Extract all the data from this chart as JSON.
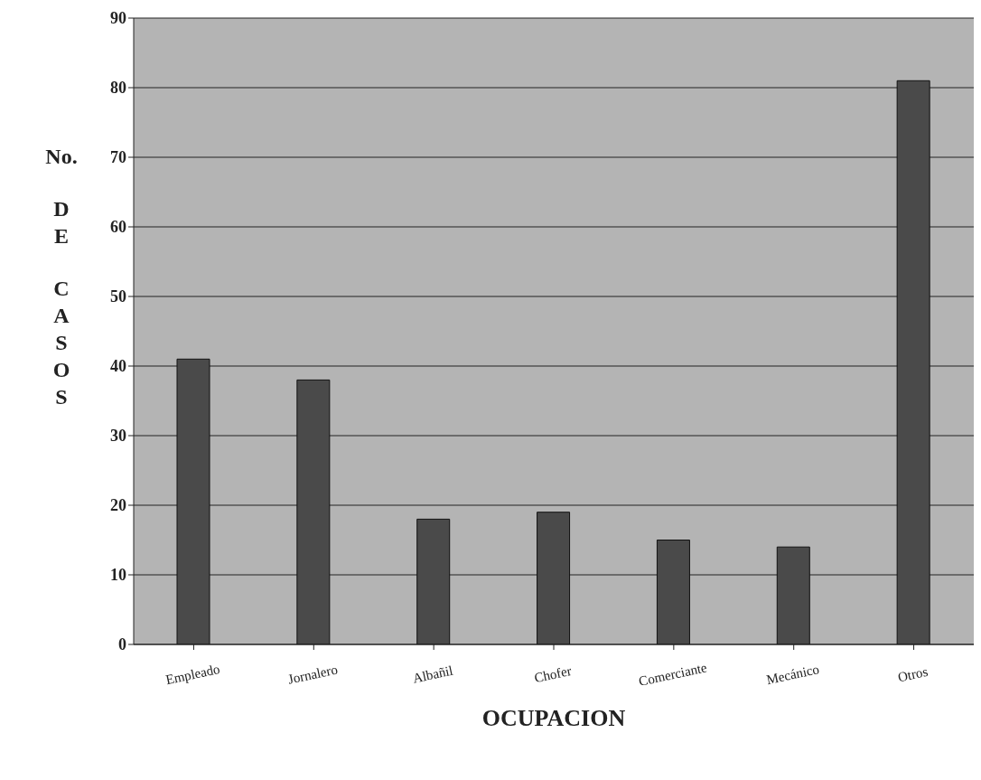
{
  "chart_data": {
    "type": "bar",
    "xlabel": "OCUPACION",
    "ylabel": "No. DE CASOS",
    "categories": [
      "Empleado",
      "Jornalero",
      "Albañil",
      "Chofer",
      "Comerciante",
      "Mecánico",
      "Otros"
    ],
    "values": [
      41,
      38,
      18,
      19,
      15,
      14,
      81
    ],
    "color": "#4a4a4a",
    "ylim": [
      0,
      90
    ],
    "yticks": [
      0,
      10,
      20,
      30,
      40,
      50,
      60,
      70,
      80,
      90
    ],
    "grid": "y"
  }
}
